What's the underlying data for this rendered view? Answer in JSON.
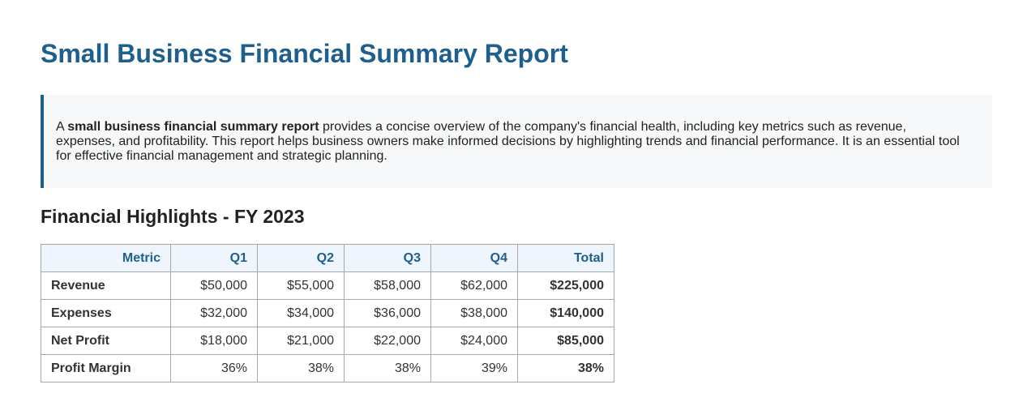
{
  "title": "Small Business Financial Summary Report",
  "intro": {
    "prefix": "A ",
    "bold": "small business financial summary report",
    "rest": " provides a concise overview of the company's financial health, including key metrics such as revenue, expenses, and profitability. This report helps business owners make informed decisions by highlighting trends and financial performance. It is an essential tool for effective financial management and strategic planning."
  },
  "section_title": "Financial Highlights - FY 2023",
  "table": {
    "headers": [
      "Metric",
      "Q1",
      "Q2",
      "Q3",
      "Q4",
      "Total"
    ],
    "rows": [
      [
        "Revenue",
        "$50,000",
        "$55,000",
        "$58,000",
        "$62,000",
        "$225,000"
      ],
      [
        "Expenses",
        "$32,000",
        "$34,000",
        "$36,000",
        "$38,000",
        "$140,000"
      ],
      [
        "Net Profit",
        "$18,000",
        "$21,000",
        "$22,000",
        "$24,000",
        "$85,000"
      ],
      [
        "Profit Margin",
        "36%",
        "38%",
        "38%",
        "39%",
        "38%"
      ]
    ]
  },
  "colors": {
    "accent": "#1f5f8b",
    "callout_bg": "#f6f8fa",
    "header_bg": "#eef5fc"
  }
}
